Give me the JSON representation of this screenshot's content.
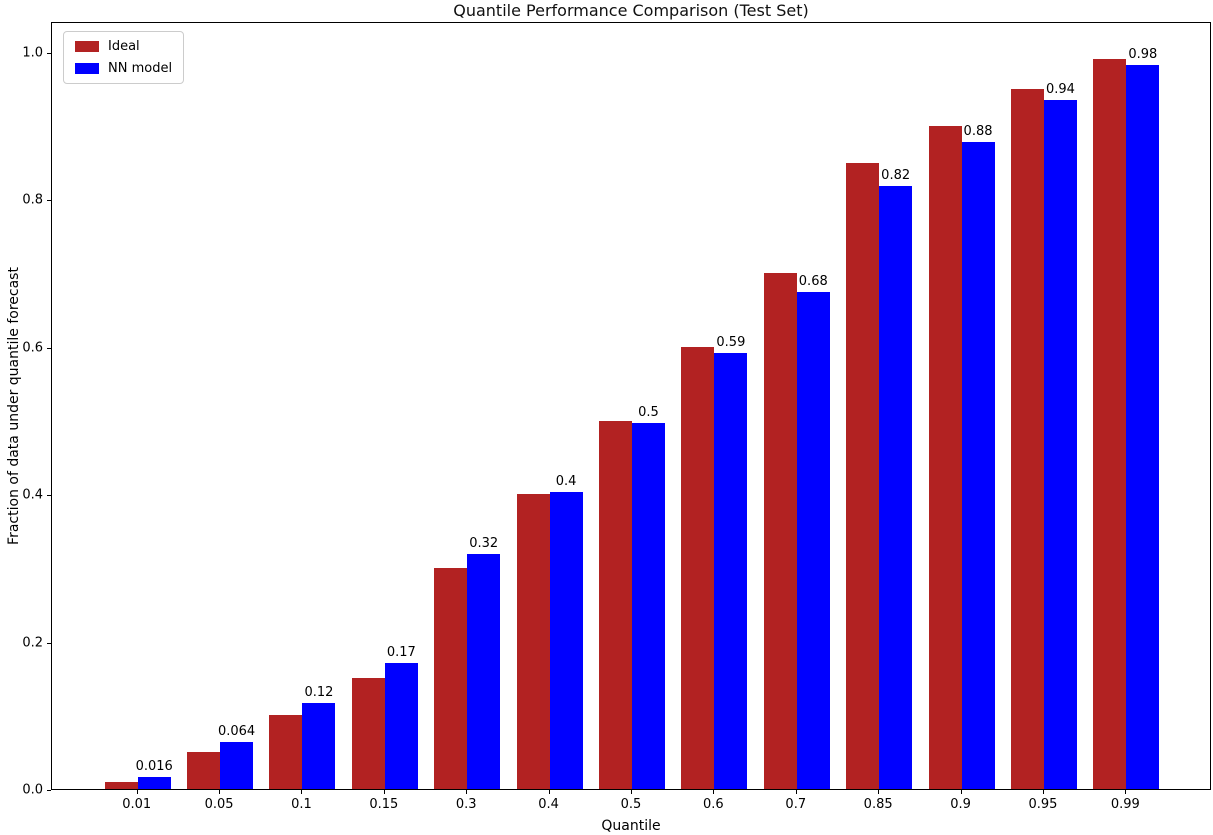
{
  "chart_data": {
    "type": "bar",
    "title": "Quantile Performance Comparison (Test Set)",
    "xlabel": "Quantile",
    "ylabel": "Fraction of data under quantile forecast",
    "categories": [
      "0.01",
      "0.05",
      "0.1",
      "0.15",
      "0.3",
      "0.4",
      "0.5",
      "0.6",
      "0.7",
      "0.85",
      "0.9",
      "0.95",
      "0.99"
    ],
    "series": [
      {
        "name": "Ideal",
        "color": "#b22222",
        "values": [
          0.01,
          0.05,
          0.1,
          0.15,
          0.3,
          0.4,
          0.5,
          0.6,
          0.7,
          0.85,
          0.9,
          0.95,
          0.99
        ]
      },
      {
        "name": "NN model",
        "color": "#0000ff",
        "values": [
          0.016,
          0.064,
          0.117,
          0.171,
          0.319,
          0.403,
          0.497,
          0.592,
          0.675,
          0.818,
          0.878,
          0.935,
          0.983
        ]
      }
    ],
    "bar_labels": [
      "0.016",
      "0.064",
      "0.12",
      "0.17",
      "0.32",
      "0.4",
      "0.5",
      "0.59",
      "0.68",
      "0.82",
      "0.88",
      "0.94",
      "0.98"
    ],
    "bar_labels_on_series": "NN model",
    "yticks": [
      "0.0",
      "0.2",
      "0.4",
      "0.6",
      "0.8",
      "1.0"
    ],
    "ylim": [
      0.0,
      1.042
    ],
    "grid": false,
    "legend_position": "upper left"
  }
}
